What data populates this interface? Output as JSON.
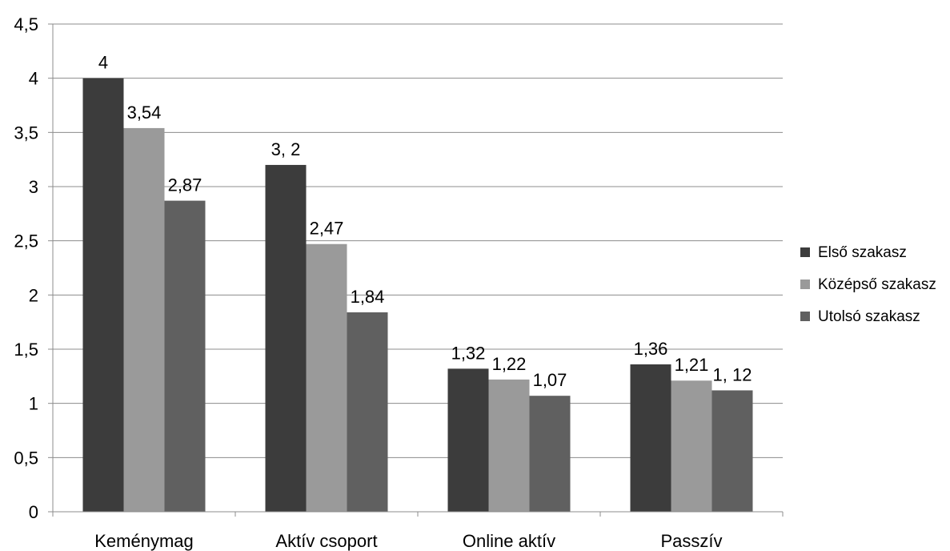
{
  "chart_data": {
    "type": "bar",
    "title": "",
    "xlabel": "",
    "ylabel": "",
    "categories": [
      "Keménymag",
      "Aktív csoport",
      "Online aktív",
      "Passzív"
    ],
    "series": [
      {
        "name": "Első szakasz",
        "color": "#3c3c3c",
        "values": [
          4,
          3.2,
          1.32,
          1.36
        ],
        "labels": [
          "4",
          "3, 2",
          "1,32",
          "1,36"
        ]
      },
      {
        "name": "Középső szakasz",
        "color": "#9a9a9a",
        "values": [
          3.54,
          2.47,
          1.22,
          1.21
        ],
        "labels": [
          "3,54",
          "2,47",
          "1,22",
          "1,21"
        ]
      },
      {
        "name": "Utolsó szakasz",
        "color": "#606060",
        "values": [
          2.87,
          1.84,
          1.07,
          1.12
        ],
        "labels": [
          "2,87",
          "1,84",
          "1,07",
          "1, 12"
        ]
      }
    ],
    "ylim": [
      0,
      4.5
    ],
    "yticks": [
      0,
      0.5,
      1,
      1.5,
      2,
      2.5,
      3,
      3.5,
      4,
      4.5
    ],
    "ytick_labels": [
      "0",
      "0,5",
      "1",
      "1,5",
      "2",
      "2,5",
      "3",
      "3,5",
      "4",
      "4,5"
    ],
    "grid": true,
    "legend_position": "right"
  }
}
